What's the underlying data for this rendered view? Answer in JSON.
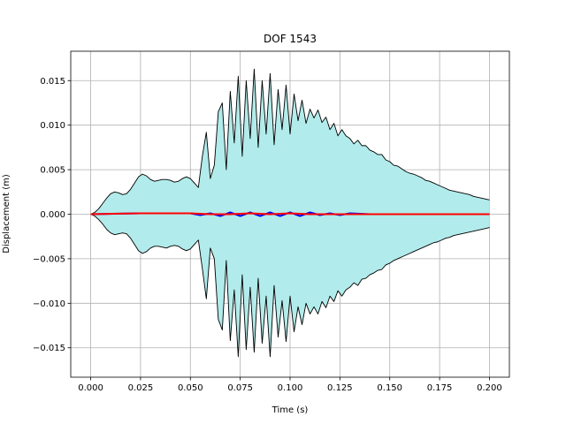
{
  "chart_data": {
    "type": "area",
    "title": "DOF 1543",
    "xlabel": "Time (s)",
    "ylabel": "Displacement (m)",
    "xlim": [
      -0.01,
      0.21
    ],
    "ylim": [
      -0.0183,
      0.0183
    ],
    "grid": true,
    "xticks": [
      0.0,
      0.025,
      0.05,
      0.075,
      0.1,
      0.125,
      0.15,
      0.175,
      0.2
    ],
    "xtick_labels": [
      "0.000",
      "0.025",
      "0.050",
      "0.075",
      "0.100",
      "0.125",
      "0.150",
      "0.175",
      "0.200"
    ],
    "yticks": [
      -0.015,
      -0.01,
      -0.005,
      0.0,
      0.005,
      0.01,
      0.015
    ],
    "ytick_labels": [
      "−0.015",
      "−0.010",
      "−0.005",
      "0.000",
      "0.005",
      "0.010",
      "0.015"
    ],
    "colors": {
      "band_fill": "#b2ebeb",
      "band_edge": "#000000",
      "mean_line": "#0000ff",
      "median_line": "#ff0000",
      "grid": "#b0b0b0"
    },
    "envelope": {
      "x": [
        0.0,
        0.002,
        0.004,
        0.006,
        0.008,
        0.01,
        0.012,
        0.014,
        0.016,
        0.018,
        0.02,
        0.022,
        0.024,
        0.026,
        0.028,
        0.03,
        0.032,
        0.034,
        0.036,
        0.038,
        0.04,
        0.042,
        0.044,
        0.046,
        0.048,
        0.05,
        0.052,
        0.054,
        0.056,
        0.058,
        0.06,
        0.062,
        0.064,
        0.066,
        0.068,
        0.07,
        0.072,
        0.074,
        0.076,
        0.078,
        0.08,
        0.082,
        0.084,
        0.086,
        0.088,
        0.09,
        0.092,
        0.094,
        0.096,
        0.098,
        0.1,
        0.102,
        0.104,
        0.106,
        0.108,
        0.11,
        0.112,
        0.114,
        0.116,
        0.118,
        0.12,
        0.122,
        0.124,
        0.126,
        0.128,
        0.13,
        0.132,
        0.134,
        0.136,
        0.138,
        0.14,
        0.142,
        0.144,
        0.146,
        0.148,
        0.15,
        0.152,
        0.154,
        0.156,
        0.158,
        0.16,
        0.162,
        0.164,
        0.166,
        0.168,
        0.17,
        0.172,
        0.174,
        0.176,
        0.178,
        0.18,
        0.182,
        0.184,
        0.186,
        0.188,
        0.19,
        0.192,
        0.194,
        0.196,
        0.198,
        0.2
      ],
      "upper": [
        0.0,
        0.0002,
        0.0006,
        0.0012,
        0.0018,
        0.0023,
        0.0025,
        0.0024,
        0.0022,
        0.0023,
        0.0028,
        0.0035,
        0.0042,
        0.0045,
        0.0043,
        0.0039,
        0.0037,
        0.0038,
        0.0039,
        0.0039,
        0.0038,
        0.0036,
        0.0037,
        0.004,
        0.0042,
        0.004,
        0.0035,
        0.003,
        0.0065,
        0.0092,
        0.004,
        0.0055,
        0.0115,
        0.0125,
        0.005,
        0.0138,
        0.008,
        0.0155,
        0.0065,
        0.015,
        0.0085,
        0.0163,
        0.0075,
        0.015,
        0.009,
        0.0158,
        0.0078,
        0.014,
        0.0095,
        0.0145,
        0.009,
        0.0135,
        0.0105,
        0.0128,
        0.0102,
        0.0118,
        0.0108,
        0.0117,
        0.0103,
        0.0109,
        0.0095,
        0.0102,
        0.0088,
        0.0095,
        0.0088,
        0.0085,
        0.0079,
        0.0083,
        0.0077,
        0.0077,
        0.0072,
        0.007,
        0.0067,
        0.0067,
        0.0061,
        0.0059,
        0.0055,
        0.0054,
        0.0051,
        0.0048,
        0.0046,
        0.0045,
        0.0043,
        0.0041,
        0.0038,
        0.0037,
        0.0035,
        0.0033,
        0.0031,
        0.0029,
        0.0027,
        0.0026,
        0.0025,
        0.0024,
        0.0023,
        0.0022,
        0.002,
        0.0019,
        0.0018,
        0.0017,
        0.0016
      ],
      "lower": [
        0.0,
        -0.0002,
        -0.0006,
        -0.0011,
        -0.0017,
        -0.0021,
        -0.0023,
        -0.0022,
        -0.0021,
        -0.0022,
        -0.0027,
        -0.0034,
        -0.0041,
        -0.0044,
        -0.0042,
        -0.0038,
        -0.0036,
        -0.0036,
        -0.0037,
        -0.0038,
        -0.0036,
        -0.0035,
        -0.0036,
        -0.0039,
        -0.0041,
        -0.0039,
        -0.0034,
        -0.0029,
        -0.0061,
        -0.0095,
        -0.0038,
        -0.005,
        -0.0118,
        -0.013,
        -0.0052,
        -0.0142,
        -0.0085,
        -0.016,
        -0.0068,
        -0.0152,
        -0.0082,
        -0.0155,
        -0.0072,
        -0.0145,
        -0.0092,
        -0.016,
        -0.008,
        -0.0138,
        -0.0097,
        -0.0143,
        -0.0092,
        -0.0132,
        -0.0104,
        -0.0124,
        -0.01,
        -0.0112,
        -0.0104,
        -0.0112,
        -0.0098,
        -0.0105,
        -0.0092,
        -0.0098,
        -0.0086,
        -0.0092,
        -0.0085,
        -0.0082,
        -0.0077,
        -0.008,
        -0.0073,
        -0.0072,
        -0.0068,
        -0.0066,
        -0.0063,
        -0.0062,
        -0.0057,
        -0.0055,
        -0.0052,
        -0.005,
        -0.0048,
        -0.0046,
        -0.0044,
        -0.0042,
        -0.004,
        -0.0038,
        -0.0036,
        -0.0034,
        -0.0032,
        -0.0031,
        -0.0029,
        -0.0027,
        -0.0026,
        -0.0024,
        -0.0023,
        -0.0022,
        -0.0021,
        -0.002,
        -0.0019,
        -0.0018,
        -0.0017,
        -0.0016,
        -0.0015
      ]
    },
    "series": [
      {
        "color": "#0000ff",
        "x": [
          0.0,
          0.025,
          0.05,
          0.055,
          0.06,
          0.065,
          0.07,
          0.075,
          0.08,
          0.085,
          0.09,
          0.095,
          0.1,
          0.105,
          0.11,
          0.115,
          0.12,
          0.125,
          0.13,
          0.14,
          0.15,
          0.16,
          0.175,
          0.2
        ],
        "y": [
          0.0,
          0.0001,
          0.0001,
          -0.0001,
          0.0001,
          -0.0002,
          0.0002,
          -0.0002,
          0.0002,
          -0.0002,
          0.0002,
          -0.0002,
          0.0002,
          -0.0002,
          0.0002,
          -0.0001,
          0.0001,
          -0.0001,
          0.0001,
          0.0,
          0.0,
          0.0,
          0.0,
          0.0
        ]
      },
      {
        "color": "#ff0000",
        "x": [
          0.0,
          0.025,
          0.05,
          0.06,
          0.07,
          0.08,
          0.09,
          0.1,
          0.11,
          0.12,
          0.13,
          0.14,
          0.15,
          0.175,
          0.2
        ],
        "y": [
          0.0,
          0.0001,
          0.0001,
          0.0,
          0.0,
          0.0001,
          0.0,
          0.0001,
          0.0,
          0.0,
          0.0,
          0.0,
          0.0,
          0.0,
          0.0
        ]
      }
    ]
  }
}
